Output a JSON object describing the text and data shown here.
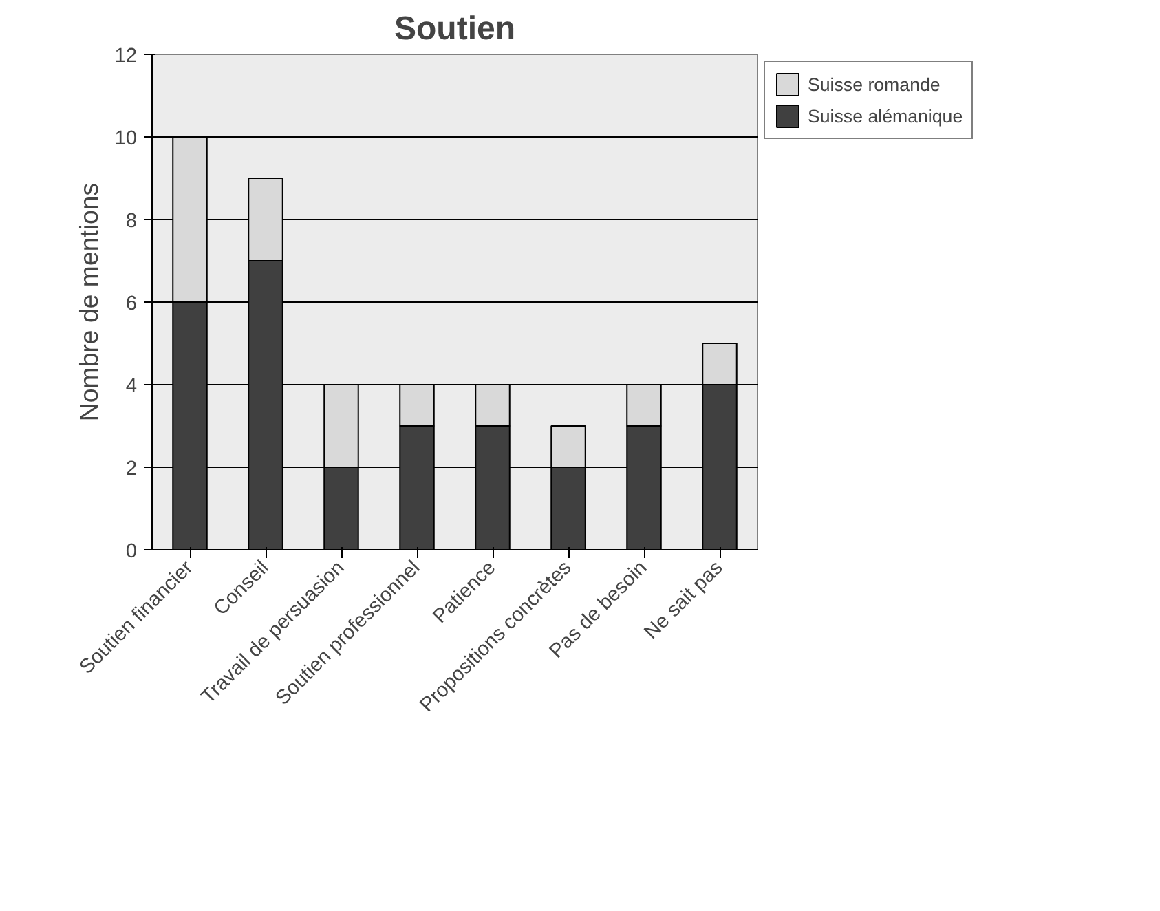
{
  "chart_data": {
    "type": "bar",
    "title": "Soutien",
    "ylabel": "Nombre de mentions",
    "categories": [
      "Soutien financier",
      "Conseil",
      "Travail de persuasion",
      "Soutien professionnel",
      "Patience",
      "Propositions concrètes",
      "Pas de besoin",
      "Ne sait pas"
    ],
    "stacked": true,
    "series": [
      {
        "name": "Suisse alémanique",
        "color": "#404040",
        "values": [
          6,
          7,
          2,
          3,
          3,
          2,
          3,
          4
        ]
      },
      {
        "name": "Suisse romande",
        "color": "#d9d9d9",
        "values": [
          4,
          2,
          2,
          1,
          1,
          1,
          1,
          1
        ]
      }
    ],
    "ylim": [
      0,
      12
    ],
    "yticks": [
      0,
      2,
      4,
      6,
      8,
      10,
      12
    ],
    "grid": "y",
    "legend": "right"
  }
}
